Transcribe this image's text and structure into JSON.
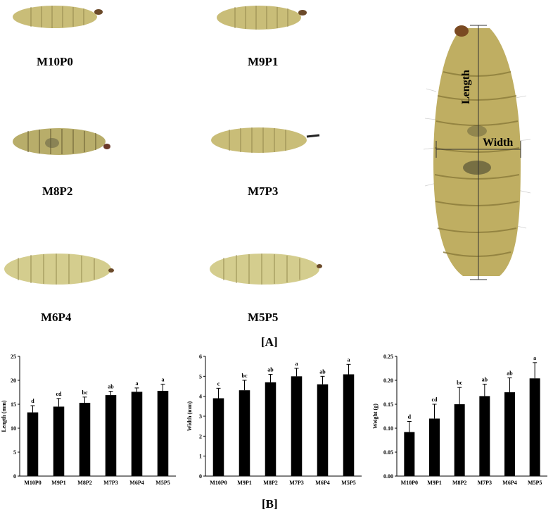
{
  "figure": {
    "panel_a_label": "[A]",
    "panel_b_label": "[B]",
    "colors": {
      "larva_body": "#c9bd78",
      "larva_dark": "#8a7e45",
      "bar_fill": "#000000"
    }
  },
  "larvae": [
    {
      "label": "M10P0"
    },
    {
      "label": "M9P1"
    },
    {
      "label": "M8P2"
    },
    {
      "label": "M7P3"
    },
    {
      "label": "M6P4"
    },
    {
      "label": "M5P5"
    }
  ],
  "measure_diagram": {
    "length_label": "Length",
    "width_label": "Width"
  },
  "chart_data": [
    {
      "type": "bar",
      "categories": [
        "M10P0",
        "M9P1",
        "M8P2",
        "M7P3",
        "M6P4",
        "M5P5"
      ],
      "values": [
        13.3,
        14.5,
        15.3,
        16.9,
        17.6,
        17.8
      ],
      "errors": [
        1.4,
        1.7,
        1.2,
        0.8,
        0.8,
        1.4
      ],
      "letters": [
        "d",
        "cd",
        "bc",
        "ab",
        "a",
        "a"
      ],
      "ylabel": "Length (mm)",
      "ylim": [
        0,
        25
      ],
      "yticks": [
        "0",
        "5",
        "10",
        "15",
        "20",
        "25"
      ]
    },
    {
      "type": "bar",
      "categories": [
        "M10P0",
        "M9P1",
        "M8P2",
        "M7P3",
        "M6P4",
        "M5P5"
      ],
      "values": [
        3.9,
        4.3,
        4.7,
        5.0,
        4.6,
        5.1
      ],
      "errors": [
        0.5,
        0.5,
        0.4,
        0.4,
        0.4,
        0.5
      ],
      "letters": [
        "c",
        "bc",
        "ab",
        "a",
        "ab",
        "a"
      ],
      "ylabel": "Width (mm)",
      "ylim": [
        0,
        6
      ],
      "yticks": [
        "0",
        "1",
        "2",
        "3",
        "4",
        "5",
        "6"
      ]
    },
    {
      "type": "bar",
      "categories": [
        "M10P0",
        "M9P1",
        "M8P2",
        "M7P3",
        "M6P4",
        "M5P5"
      ],
      "values": [
        0.092,
        0.12,
        0.15,
        0.167,
        0.175,
        0.204
      ],
      "errors": [
        0.022,
        0.03,
        0.035,
        0.025,
        0.03,
        0.033
      ],
      "letters": [
        "d",
        "cd",
        "bc",
        "ab",
        "ab",
        "a"
      ],
      "ylabel": "Weight (g)",
      "ylim": [
        0,
        0.25
      ],
      "yticks": [
        "0.00",
        "0.05",
        "0.10",
        "0.15",
        "0.20",
        "0.25"
      ]
    }
  ]
}
